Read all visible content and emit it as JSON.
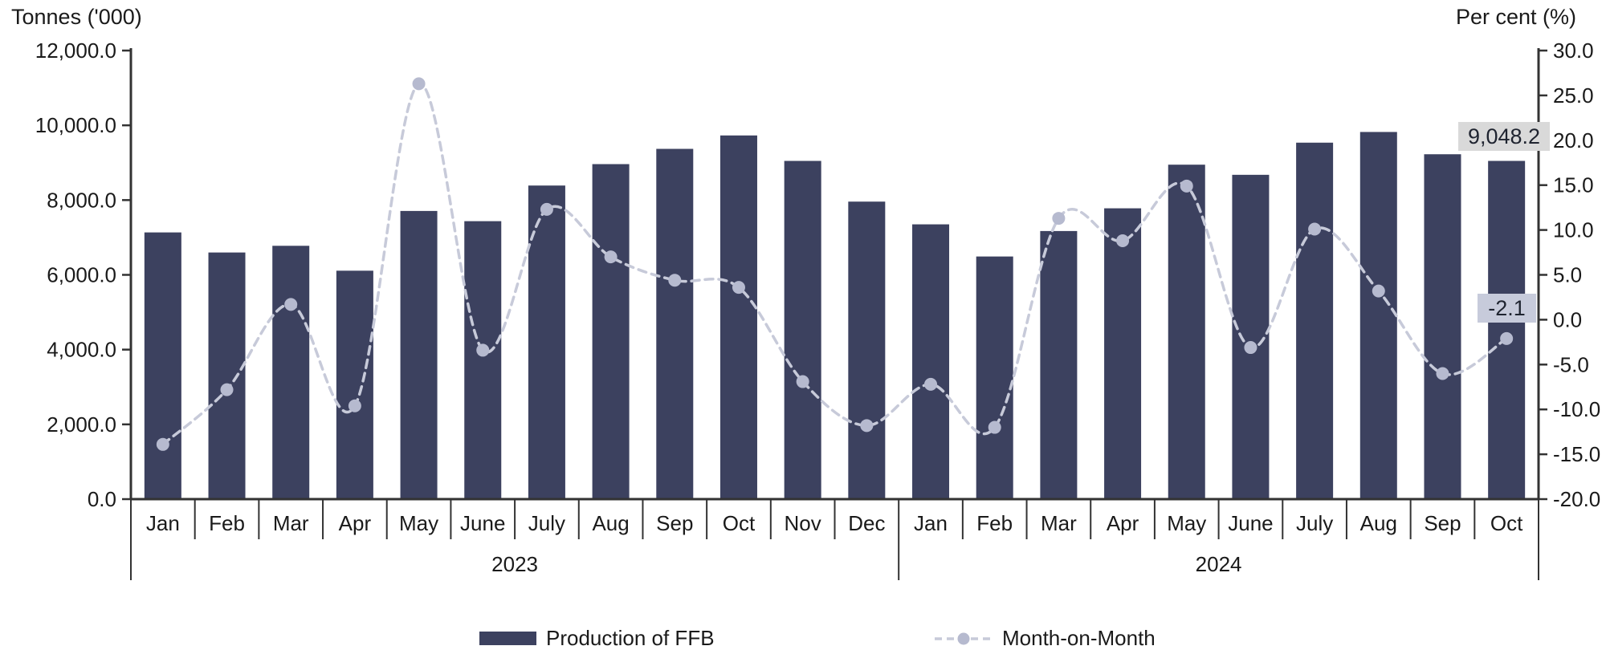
{
  "header": {
    "left_axis_title": "Tonnes ('000)",
    "right_axis_title": "Per cent (%)"
  },
  "legend": {
    "bar_label": "Production of FFB",
    "line_label": "Month-on-Month"
  },
  "annotations": {
    "last_bar_value": "9,048.2",
    "last_line_value": "-2.1"
  },
  "chart_data": {
    "type": "bar+line combo",
    "groups": [
      {
        "year": "2023",
        "months": [
          "Jan",
          "Feb",
          "Mar",
          "Apr",
          "May",
          "June",
          "July",
          "Aug",
          "Sep",
          "Oct",
          "Nov",
          "Dec"
        ]
      },
      {
        "year": "2024",
        "months": [
          "Jan",
          "Feb",
          "Mar",
          "Apr",
          "May",
          "June",
          "July",
          "Aug",
          "Sep",
          "Oct"
        ]
      }
    ],
    "series": [
      {
        "name": "Production of FFB",
        "type": "bar",
        "axis": "left",
        "unit": "thousand tonnes",
        "values": [
          7135,
          6598,
          6777,
          6111,
          7709,
          7436,
          8389,
          8962,
          9370,
          9729,
          9048,
          7959,
          7351,
          6491,
          7172,
          7780,
          8947,
          8676,
          9536,
          9822,
          9226,
          9048.2
        ]
      },
      {
        "name": "Month-on-Month",
        "type": "line",
        "axis": "right",
        "unit": "per cent",
        "values": [
          -13.9,
          -7.8,
          1.7,
          -9.6,
          26.3,
          -3.4,
          12.3,
          7.0,
          4.4,
          3.6,
          -6.9,
          -11.8,
          -7.2,
          -12.0,
          11.3,
          8.8,
          14.9,
          -3.1,
          10.1,
          3.2,
          -6.0,
          -2.1
        ]
      }
    ],
    "left_axis": {
      "title": "Tonnes ('000)",
      "min": 0,
      "max": 12000,
      "step": 2000
    },
    "right_axis": {
      "title": "Per cent (%)",
      "min": -20,
      "max": 30,
      "step": 5
    },
    "legend_position": "bottom",
    "grid": false,
    "colors": {
      "bar": "#3c415f",
      "line": "#c7cad9",
      "marker": "#b6bacf",
      "axis": "#333333",
      "text": "#1a1a1a",
      "annotation_bar_bg": "#d9d9d9",
      "annotation_line_bg": "#c7cbdb"
    }
  }
}
